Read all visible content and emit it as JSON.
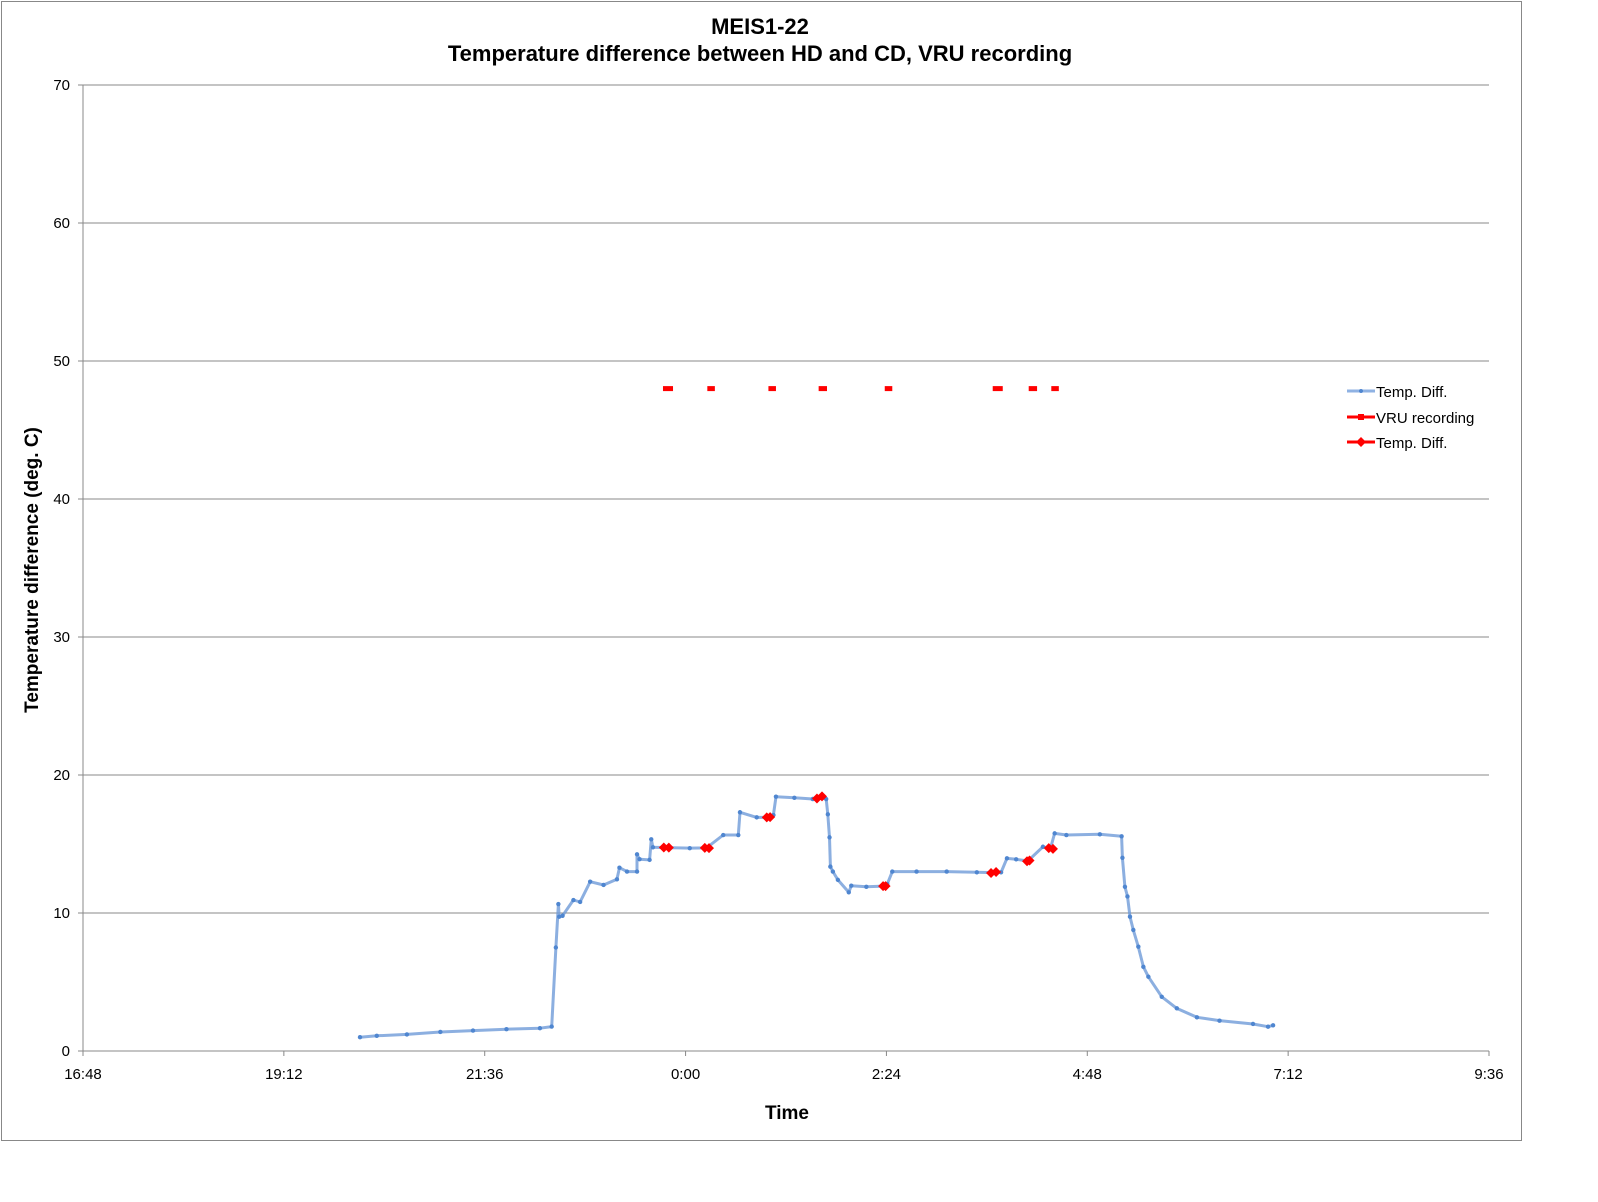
{
  "chart_data": {
    "type": "line",
    "title": "MEIS1-22",
    "subtitle": "Temperature difference between HD and CD, VRU recording",
    "xlabel": "Time",
    "ylabel": "Temperature difference (deg. C)",
    "x_unit": "hours since midnight of day 1 (values > 24 are next day)",
    "xlim": [
      16.8,
      33.6
    ],
    "ylim": [
      0,
      70
    ],
    "x_ticks": [
      16.8,
      19.2,
      21.6,
      24.0,
      26.4,
      28.8,
      31.2,
      33.6
    ],
    "x_tick_labels": [
      "16:48",
      "19:12",
      "21:36",
      "0:00",
      "2:24",
      "4:48",
      "7:12",
      "9:36"
    ],
    "y_ticks": [
      0,
      10,
      20,
      30,
      40,
      50,
      60,
      70
    ],
    "y_tick_labels": [
      "0",
      "10",
      "20",
      "30",
      "40",
      "50",
      "60",
      "70"
    ],
    "grid": "horizontal",
    "legend_position": "right",
    "series": [
      {
        "name": "Temp. Diff.",
        "color": "#6f9bd8",
        "marker_color": "#4f86d0",
        "x": [
          20.11,
          20.31,
          20.67,
          21.07,
          21.46,
          21.86,
          22.26,
          22.4,
          22.45,
          22.48,
          22.49,
          22.53,
          22.66,
          22.74,
          22.86,
          23.02,
          23.18,
          23.21,
          23.3,
          23.42,
          23.42,
          23.45,
          23.57,
          23.59,
          23.61,
          23.77,
          24.05,
          24.25,
          24.45,
          24.63,
          24.65,
          24.85,
          24.99,
          25.05,
          25.08,
          25.3,
          25.52,
          25.6,
          25.68,
          25.7,
          25.72,
          25.73,
          25.76,
          25.82,
          25.95,
          25.98,
          26.16,
          26.37,
          26.41,
          26.47,
          26.76,
          27.12,
          27.48,
          27.68,
          27.77,
          27.84,
          27.95,
          28.09,
          28.27,
          28.36,
          28.41,
          28.55,
          28.95,
          29.21,
          29.22,
          29.25,
          29.28,
          29.31,
          29.35,
          29.41,
          29.47,
          29.53,
          29.69,
          29.87,
          30.11,
          30.38,
          30.78,
          30.96,
          31.02
        ],
        "y": [
          1.0,
          1.1,
          1.2,
          1.38,
          1.48,
          1.58,
          1.65,
          1.77,
          7.5,
          10.65,
          9.73,
          9.8,
          10.94,
          10.8,
          12.27,
          12.03,
          12.44,
          13.28,
          13.0,
          13.0,
          14.25,
          13.9,
          13.85,
          15.34,
          14.76,
          14.74,
          14.7,
          14.72,
          15.65,
          15.65,
          17.3,
          16.93,
          16.93,
          17.1,
          18.43,
          18.35,
          18.26,
          18.4,
          18.26,
          17.15,
          15.48,
          13.36,
          13.0,
          12.4,
          11.5,
          11.98,
          11.9,
          11.95,
          12.1,
          13.0,
          13.0,
          13.0,
          12.95,
          12.93,
          12.95,
          13.96,
          13.89,
          13.77,
          14.8,
          14.68,
          15.77,
          15.65,
          15.7,
          15.56,
          14.0,
          11.9,
          11.2,
          9.73,
          8.77,
          7.56,
          6.1,
          5.38,
          3.93,
          3.09,
          2.44,
          2.2,
          1.96,
          1.76,
          1.86
        ]
      },
      {
        "name": "VRU recording",
        "color": "#ff0000",
        "segments": [
          [
            23.73,
            23.85
          ],
          [
            24.26,
            24.35
          ],
          [
            24.99,
            25.08
          ],
          [
            25.59,
            25.69
          ],
          [
            26.38,
            26.47
          ],
          [
            27.67,
            27.79
          ],
          [
            28.1,
            28.2
          ],
          [
            28.37,
            28.46
          ]
        ],
        "y": 48
      },
      {
        "name": "Temp. Diff.",
        "color": "#ff0000",
        "x": [
          23.74,
          23.8,
          24.23,
          24.28,
          24.97,
          25.01,
          25.57,
          25.63,
          26.36,
          26.39,
          27.65,
          27.71,
          28.08,
          28.11,
          28.34,
          28.39
        ],
        "y": [
          14.75,
          14.74,
          14.72,
          14.7,
          16.93,
          16.95,
          18.3,
          18.45,
          11.95,
          11.95,
          12.9,
          12.97,
          13.75,
          13.8,
          14.7,
          14.65
        ]
      }
    ]
  }
}
